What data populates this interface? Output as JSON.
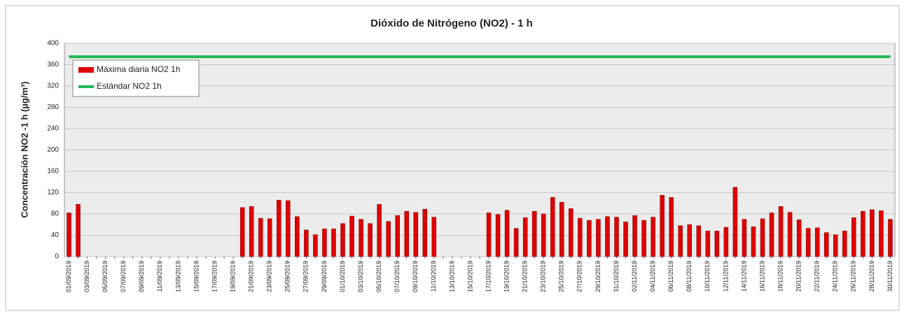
{
  "chart_data": {
    "type": "bar",
    "title": "Dióxido de Nitrógeno (NO2) - 1 h",
    "y_label": "Concentración  NO2 -1 h (µg/m³)",
    "categories": [
      "01/09/2019",
      null,
      "03/09/2019",
      null,
      "05/09/2019",
      null,
      "07/09/2019",
      null,
      "09/09/2019",
      null,
      "11/09/2019",
      null,
      "13/09/2019",
      null,
      "15/09/2019",
      null,
      "17/09/2019",
      null,
      "19/09/2019",
      null,
      "21/09/2019",
      null,
      "23/09/2019",
      null,
      "25/09/2019",
      null,
      "27/09/2019",
      null,
      "29/09/2019",
      null,
      "01/10/2019",
      null,
      "03/10/2019",
      null,
      "05/10/2019",
      null,
      "07/10/2019",
      null,
      "09/10/2019",
      null,
      "11/10/2019",
      null,
      "13/10/2019",
      null,
      "15/10/2019",
      null,
      "17/10/2019",
      null,
      "19/10/2019",
      null,
      "21/10/2019",
      null,
      "23/10/2019",
      null,
      "25/10/2019",
      null,
      "27/10/2019",
      null,
      "29/10/2019",
      null,
      "31/10/2019",
      null,
      "02/11/2019",
      null,
      "04/11/2019",
      null,
      "06/11/2019",
      null,
      "08/11/2019",
      null,
      "10/11/2019",
      null,
      "12/11/2019",
      null,
      "14/11/2019",
      null,
      "16/11/2019",
      null,
      "18/11/2019",
      null,
      "20/11/2019",
      null,
      "22/11/2019",
      null,
      "24/11/2019",
      null,
      "26/11/2019",
      null,
      "28/11/2019",
      null,
      "30/11/2019"
    ],
    "series": [
      {
        "name": "Máxima diaria NO2 1h",
        "color": "#e00000",
        "kind": "bar",
        "values": [
          82,
          98,
          null,
          null,
          null,
          null,
          null,
          null,
          null,
          null,
          null,
          null,
          null,
          null,
          null,
          null,
          null,
          null,
          null,
          92,
          94,
          72,
          71,
          106,
          105,
          75,
          50,
          41,
          52,
          52,
          62,
          76,
          70,
          62,
          98,
          66,
          77,
          85,
          83,
          89,
          74,
          null,
          null,
          null,
          null,
          null,
          82,
          79,
          87,
          53,
          73,
          85,
          80,
          111,
          102,
          90,
          72,
          68,
          70,
          75,
          74,
          65,
          77,
          68,
          74,
          115,
          111,
          58,
          60,
          58,
          48,
          48,
          55,
          130,
          70,
          56,
          71,
          82,
          94,
          83,
          69,
          53,
          54,
          45,
          41,
          48,
          73,
          85,
          88,
          86,
          70
        ]
      },
      {
        "name": "Estándar NO2 1h",
        "color": "#1db954",
        "kind": "line",
        "values": [
          375,
          375,
          375,
          375,
          375,
          375,
          375,
          375,
          375,
          375,
          375,
          375,
          375,
          375,
          375,
          375,
          375,
          375,
          375,
          375,
          375,
          375,
          375,
          375,
          375,
          375,
          375,
          375,
          375,
          375,
          375,
          375,
          375,
          375,
          375,
          375,
          375,
          375,
          375,
          375,
          375,
          375,
          375,
          375,
          375,
          375,
          375,
          375,
          375,
          375,
          375,
          375,
          375,
          375,
          375,
          375,
          375,
          375,
          375,
          375,
          375,
          375,
          375,
          375,
          375,
          375,
          375,
          375,
          375,
          375,
          375,
          375,
          375,
          375,
          375,
          375,
          375,
          375,
          375,
          375,
          375,
          375,
          375,
          375,
          375,
          375,
          375,
          375,
          375,
          375,
          375
        ]
      }
    ],
    "ylim": [
      0,
      400
    ],
    "yticks": [
      0,
      40,
      80,
      120,
      160,
      200,
      240,
      280,
      320,
      360,
      400
    ],
    "grid": true,
    "legend": "upper left"
  }
}
